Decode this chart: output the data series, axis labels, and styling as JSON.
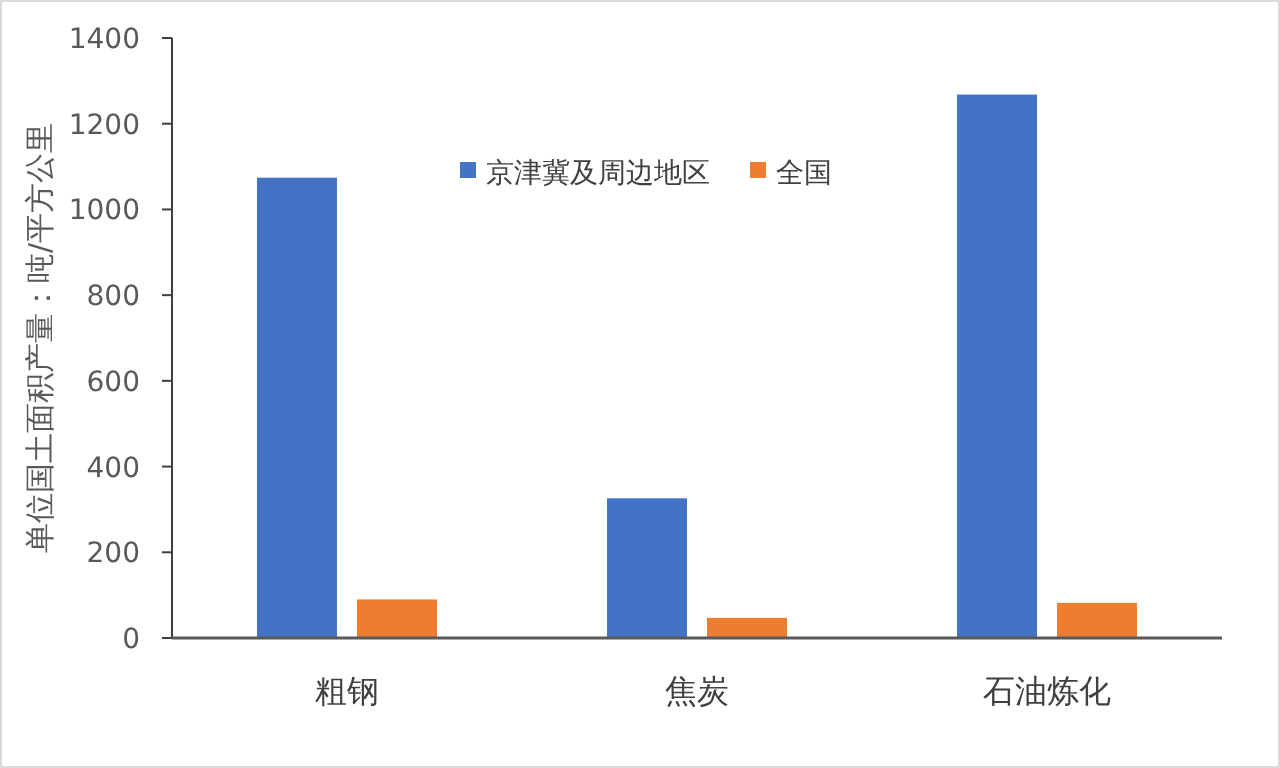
{
  "chart_data": {
    "type": "bar",
    "ylabel": "单位国土面积产量：吨/平方公里",
    "categories": [
      "粗钢",
      "焦炭",
      "石油炼化"
    ],
    "series": [
      {
        "name": "京津冀及周边地区",
        "color": "#4472c4",
        "values": [
          1074,
          326,
          1268
        ]
      },
      {
        "name": "全国",
        "color": "#ed7d31",
        "values": [
          90,
          47,
          82
        ]
      }
    ],
    "ylim": [
      0,
      1400
    ],
    "yticks": [
      0,
      200,
      400,
      600,
      800,
      1000,
      1200,
      1400
    ],
    "grid": false,
    "legend": "top"
  }
}
